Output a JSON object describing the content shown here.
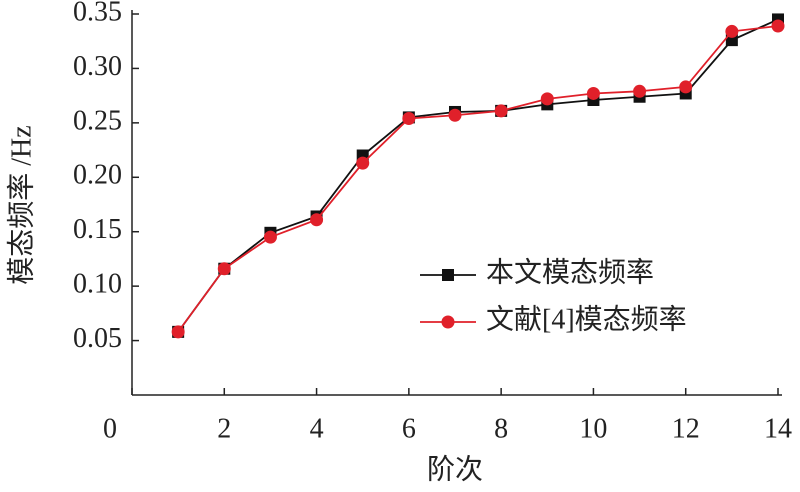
{
  "chart_data": {
    "type": "line",
    "x_label": "阶次",
    "y_label": "模态频率 /Hz",
    "x": [
      1,
      2,
      3,
      4,
      5,
      6,
      7,
      8,
      9,
      10,
      11,
      12,
      13,
      14
    ],
    "series": [
      {
        "name": "本文模态频率",
        "color": "#111111",
        "marker": "square",
        "values": [
          0.058,
          0.116,
          0.149,
          0.164,
          0.22,
          0.255,
          0.26,
          0.261,
          0.267,
          0.271,
          0.274,
          0.277,
          0.326,
          0.345
        ]
      },
      {
        "name": "文献[4]模态频率",
        "color": "#e0202a",
        "marker": "circle",
        "values": [
          0.058,
          0.116,
          0.145,
          0.161,
          0.213,
          0.254,
          0.257,
          0.261,
          0.272,
          0.277,
          0.279,
          0.283,
          0.334,
          0.339
        ]
      }
    ],
    "xlim": [
      0,
      14
    ],
    "xticks": [
      0,
      2,
      4,
      6,
      8,
      10,
      12,
      14
    ],
    "ylim": [
      0,
      0.35
    ],
    "yticks": [
      0.05,
      {
        "value": 0.1,
        "label": "0.10"
      },
      0.15,
      {
        "value": 0.2,
        "label": "0.20"
      },
      0.25,
      {
        "value": 0.3,
        "label": "0.30"
      },
      0.35
    ]
  }
}
